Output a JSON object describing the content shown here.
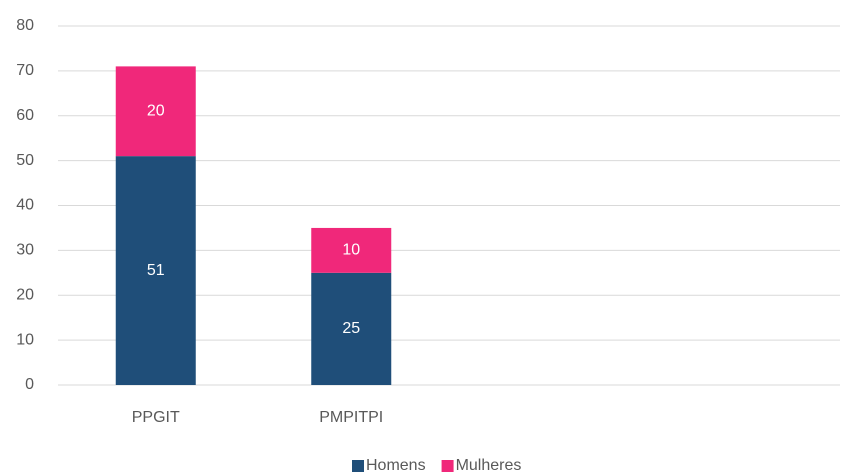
{
  "chart_data": {
    "type": "stacked_bar",
    "categories": [
      "PPGIT",
      "PMPITPI",
      null,
      null
    ],
    "series": [
      {
        "name": "Homens",
        "color": "#1f4e79",
        "values": [
          51,
          25,
          null,
          null
        ]
      },
      {
        "name": "Mulheres",
        "color": "#f0287a",
        "values": [
          20,
          10,
          null,
          null
        ]
      }
    ],
    "ylim": [
      0,
      80
    ],
    "yticks": [
      0,
      10,
      20,
      30,
      40,
      50,
      60,
      70,
      80
    ],
    "grid": true,
    "legend": "bottom"
  }
}
